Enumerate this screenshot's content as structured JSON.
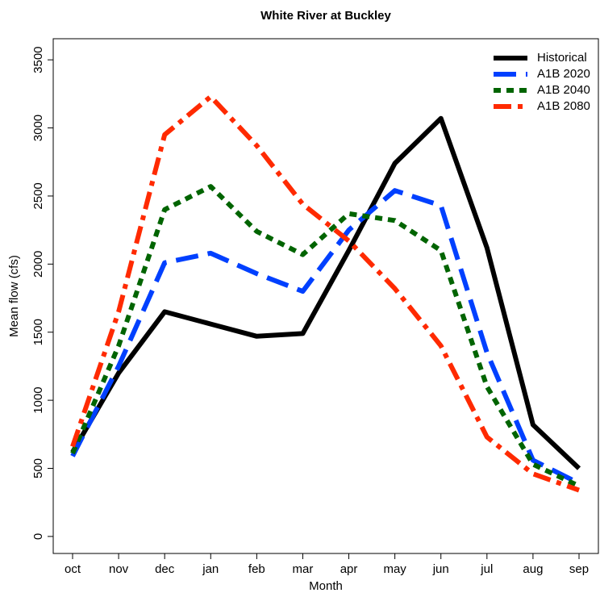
{
  "chart_data": {
    "type": "line",
    "title": "White River at Buckley",
    "xlabel": "Month",
    "ylabel": "Mean flow (cfs)",
    "categories": [
      "oct",
      "nov",
      "dec",
      "jan",
      "feb",
      "mar",
      "apr",
      "may",
      "jun",
      "jul",
      "aug",
      "sep"
    ],
    "series": [
      {
        "name": "Historical",
        "color": "#000000",
        "dash": "solid",
        "values": [
          620,
          1200,
          1650,
          1560,
          1470,
          1490,
          2100,
          2740,
          3070,
          2120,
          820,
          500
        ]
      },
      {
        "name": "A1B 2020",
        "color": "#0040ff",
        "dash": "longdash",
        "values": [
          590,
          1250,
          2010,
          2080,
          1930,
          1800,
          2250,
          2540,
          2430,
          1350,
          560,
          390
        ]
      },
      {
        "name": "A1B 2040",
        "color": "#006400",
        "dash": "dotted",
        "values": [
          610,
          1400,
          2400,
          2570,
          2240,
          2070,
          2370,
          2320,
          2100,
          1100,
          530,
          370
        ]
      },
      {
        "name": "A1B 2080",
        "color": "#ff2a00",
        "dash": "dotdash",
        "values": [
          660,
          1650,
          2950,
          3230,
          2870,
          2440,
          2170,
          1820,
          1400,
          730,
          460,
          340
        ]
      }
    ],
    "ylim": [
      -125,
      3655
    ],
    "yticks": [
      0,
      500,
      1000,
      1500,
      2000,
      2500,
      3000,
      3500
    ],
    "legend": "top-right"
  }
}
